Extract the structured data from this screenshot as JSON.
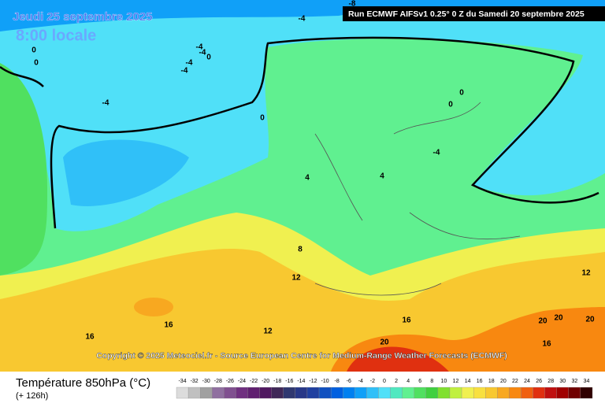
{
  "header": {
    "date": "Jeudi 25 septembre 2025",
    "time": "8:00 locale",
    "run": "Run ECMWF AIFSv1 0.25° 0 Z du Samedi 20 septembre 2025"
  },
  "copyright": "Copyright © 2025 Meteociel.fr - Source European Centre for Medium-Range Weather Forecasts (ECMWF)",
  "contour_labels": [
    "-8",
    "-4",
    "0",
    "0",
    "-4",
    "-4",
    "0",
    "-4",
    "-4",
    "-4",
    "0",
    "0",
    "0",
    "-4",
    "4",
    "4",
    "8",
    "12",
    "12",
    "16",
    "16",
    "16",
    "12",
    "20",
    "20",
    "20",
    "20",
    "16"
  ],
  "footer": {
    "title": "Température 850hPa (°C)",
    "subtitle": "(+ 126h)"
  },
  "legend": {
    "values": [
      -34,
      -32,
      -30,
      -28,
      -26,
      -24,
      -22,
      -20,
      -18,
      -16,
      -14,
      -12,
      -10,
      -8,
      -6,
      -4,
      -2,
      0,
      2,
      4,
      6,
      8,
      10,
      12,
      14,
      16,
      18,
      20,
      22,
      24,
      26,
      28,
      30,
      32,
      34
    ],
    "colors": [
      "#dcdcdc",
      "#c0c0c0",
      "#a0a0a0",
      "#9070a0",
      "#805090",
      "#703080",
      "#602070",
      "#501860",
      "#402858",
      "#303870",
      "#283888",
      "#2040a0",
      "#1050c0",
      "#0060e0",
      "#0080f0",
      "#10a0f8",
      "#30c0f8",
      "#50e0f8",
      "#50e8c0",
      "#60f090",
      "#50e060",
      "#40d040",
      "#80e030",
      "#c0f040",
      "#f0f050",
      "#f8e040",
      "#f8c830",
      "#f8a820",
      "#f88810",
      "#f06010",
      "#e03010",
      "#c01010",
      "#a00000",
      "#700000",
      "#300000"
    ]
  }
}
